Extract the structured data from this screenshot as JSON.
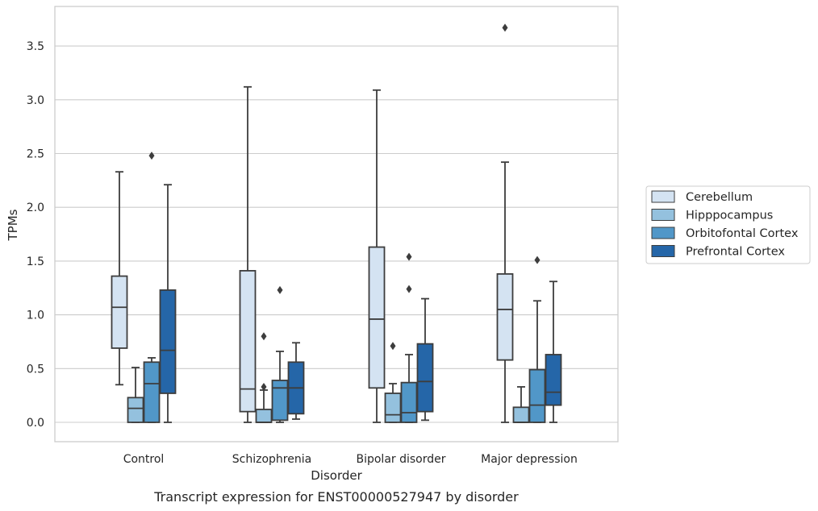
{
  "chart_data": {
    "type": "box",
    "title": "",
    "caption": "Transcript expression for ENST00000527947 by disorder",
    "xlabel": "Disorder",
    "ylabel": "TPMs",
    "ylim": [
      -0.18,
      3.86
    ],
    "yticks": [
      0.0,
      0.5,
      1.0,
      1.5,
      2.0,
      2.5,
      3.0,
      3.5
    ],
    "ytick_labels": [
      "0.0",
      "0.5",
      "1.0",
      "1.5",
      "2.0",
      "2.5",
      "3.0",
      "3.5"
    ],
    "grid": "horizontal",
    "legend_position": "right",
    "categories": [
      "Control",
      "Schizophrenia",
      "Bipolar disorder",
      "Major depression"
    ],
    "series": [
      {
        "name": "Cerebellum",
        "color": "#d4e3f2",
        "boxes": [
          {
            "whisker_low": 0.35,
            "q1": 0.69,
            "median": 1.07,
            "q3": 1.36,
            "whisker_high": 2.33,
            "outliers": []
          },
          {
            "whisker_low": 0.0,
            "q1": 0.1,
            "median": 0.31,
            "q3": 1.41,
            "whisker_high": 3.12,
            "outliers": []
          },
          {
            "whisker_low": 0.0,
            "q1": 0.32,
            "median": 0.96,
            "q3": 1.63,
            "whisker_high": 3.09,
            "outliers": []
          },
          {
            "whisker_low": 0.0,
            "q1": 0.58,
            "median": 1.05,
            "q3": 1.38,
            "whisker_high": 2.42,
            "outliers": [
              3.67
            ]
          }
        ]
      },
      {
        "name": "Hipppocampus",
        "color": "#94c1de",
        "boxes": [
          {
            "whisker_low": 0.0,
            "q1": 0.0,
            "median": 0.13,
            "q3": 0.23,
            "whisker_high": 0.51,
            "outliers": []
          },
          {
            "whisker_low": 0.0,
            "q1": 0.0,
            "median": 0.0,
            "q3": 0.12,
            "whisker_high": 0.3,
            "outliers": [
              0.8,
              0.33
            ]
          },
          {
            "whisker_low": 0.0,
            "q1": 0.0,
            "median": 0.07,
            "q3": 0.27,
            "whisker_high": 0.36,
            "outliers": [
              0.71
            ]
          },
          {
            "whisker_low": 0.0,
            "q1": 0.0,
            "median": 0.0,
            "q3": 0.14,
            "whisker_high": 0.33,
            "outliers": []
          }
        ]
      },
      {
        "name": "Orbitofontal Cortex",
        "color": "#5197c8",
        "boxes": [
          {
            "whisker_low": 0.0,
            "q1": 0.0,
            "median": 0.36,
            "q3": 0.56,
            "whisker_high": 0.6,
            "outliers": [
              2.48
            ]
          },
          {
            "whisker_low": 0.0,
            "q1": 0.02,
            "median": 0.32,
            "q3": 0.39,
            "whisker_high": 0.66,
            "outliers": [
              1.23
            ]
          },
          {
            "whisker_low": 0.0,
            "q1": 0.0,
            "median": 0.09,
            "q3": 0.37,
            "whisker_high": 0.63,
            "outliers": [
              1.54,
              1.24
            ]
          },
          {
            "whisker_low": 0.0,
            "q1": 0.0,
            "median": 0.16,
            "q3": 0.49,
            "whisker_high": 1.13,
            "outliers": [
              1.51
            ]
          }
        ]
      },
      {
        "name": "Prefrontal Cortex",
        "color": "#2566a8",
        "boxes": [
          {
            "whisker_low": 0.0,
            "q1": 0.27,
            "median": 0.67,
            "q3": 1.23,
            "whisker_high": 2.21,
            "outliers": []
          },
          {
            "whisker_low": 0.03,
            "q1": 0.08,
            "median": 0.32,
            "q3": 0.56,
            "whisker_high": 0.74,
            "outliers": []
          },
          {
            "whisker_low": 0.02,
            "q1": 0.1,
            "median": 0.38,
            "q3": 0.73,
            "whisker_high": 1.15,
            "outliers": []
          },
          {
            "whisker_low": 0.0,
            "q1": 0.16,
            "median": 0.28,
            "q3": 0.63,
            "whisker_high": 1.31,
            "outliers": []
          }
        ]
      }
    ]
  },
  "colors": {
    "grid": "#cccccc",
    "box_edge": "#3d3d3d",
    "frame": "#cccccc",
    "background": "#ffffff"
  }
}
